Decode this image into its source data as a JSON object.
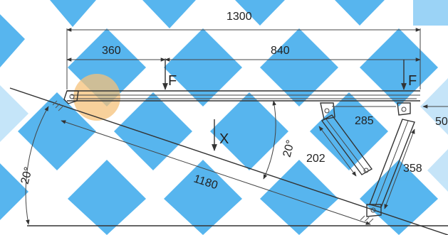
{
  "colors": {
    "watermark_blue": "#3aa9ec",
    "highlight": "#f6c27a",
    "line": "#333333"
  },
  "dimensions": {
    "total_length": "1300",
    "left_span": "360",
    "right_span": "840",
    "offset_right": "50",
    "strut_short_span": "285",
    "strut_short_length": "202",
    "strut_long_length": "358",
    "incline_length": "1180",
    "angle_incline": "20°",
    "angle_beam": "20°"
  },
  "labels": {
    "force_left": "F",
    "force_right": "F",
    "axis": "X"
  }
}
